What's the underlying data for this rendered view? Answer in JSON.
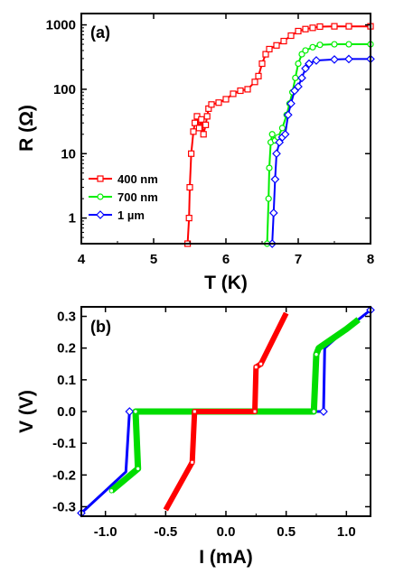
{
  "chart_data": [
    {
      "panel_label": "(a)",
      "type": "line",
      "xlabel": "T (K)",
      "ylabel": "R (Ω)",
      "xlim": [
        4,
        8
      ],
      "ylim": [
        0.4,
        1500
      ],
      "yscale": "log",
      "xticks": [
        "4",
        "5",
        "6",
        "7",
        "8"
      ],
      "yticks": [
        "1",
        "10",
        "100",
        "1000"
      ],
      "legend_position": "middle-left",
      "series": [
        {
          "name": "400 nm",
          "color": "#ff0000",
          "marker": "square",
          "points": [
            [
              5.47,
              0.4
            ],
            [
              5.49,
              1
            ],
            [
              5.5,
              3
            ],
            [
              5.52,
              10
            ],
            [
              5.55,
              22
            ],
            [
              5.57,
              30
            ],
            [
              5.6,
              38
            ],
            [
              5.63,
              25
            ],
            [
              5.66,
              34
            ],
            [
              5.69,
              20
            ],
            [
              5.72,
              28
            ],
            [
              5.74,
              38
            ],
            [
              5.76,
              50
            ],
            [
              5.8,
              58
            ],
            [
              5.9,
              62
            ],
            [
              6.0,
              70
            ],
            [
              6.1,
              85
            ],
            [
              6.2,
              95
            ],
            [
              6.3,
              100
            ],
            [
              6.4,
              130
            ],
            [
              6.45,
              160
            ],
            [
              6.5,
              250
            ],
            [
              6.55,
              350
            ],
            [
              6.6,
              420
            ],
            [
              6.7,
              480
            ],
            [
              6.8,
              560
            ],
            [
              6.9,
              680
            ],
            [
              7.0,
              800
            ],
            [
              7.1,
              860
            ],
            [
              7.2,
              900
            ],
            [
              7.3,
              940
            ],
            [
              7.5,
              950
            ],
            [
              7.7,
              950
            ],
            [
              8.0,
              950
            ]
          ]
        },
        {
          "name": "700 nm",
          "color": "#00ee00",
          "marker": "circle",
          "points": [
            [
              6.57,
              0.4
            ],
            [
              6.59,
              2
            ],
            [
              6.6,
              6
            ],
            [
              6.62,
              15
            ],
            [
              6.64,
              20
            ],
            [
              6.68,
              16
            ],
            [
              6.72,
              18
            ],
            [
              6.78,
              25
            ],
            [
              6.84,
              40
            ],
            [
              6.88,
              60
            ],
            [
              6.92,
              90
            ],
            [
              6.96,
              150
            ],
            [
              7.0,
              250
            ],
            [
              7.05,
              350
            ],
            [
              7.1,
              400
            ],
            [
              7.2,
              450
            ],
            [
              7.3,
              490
            ],
            [
              7.5,
              500
            ],
            [
              7.7,
              500
            ],
            [
              8.0,
              500
            ]
          ]
        },
        {
          "name": "1 µm",
          "color": "#0000ff",
          "marker": "diamond",
          "points": [
            [
              6.64,
              0.4
            ],
            [
              6.66,
              1.2
            ],
            [
              6.68,
              4
            ],
            [
              6.7,
              10
            ],
            [
              6.74,
              15
            ],
            [
              6.78,
              18
            ],
            [
              6.82,
              20
            ],
            [
              6.86,
              40
            ],
            [
              6.9,
              60
            ],
            [
              6.95,
              95
            ],
            [
              7.0,
              110
            ],
            [
              7.05,
              150
            ],
            [
              7.1,
              210
            ],
            [
              7.15,
              250
            ],
            [
              7.25,
              280
            ],
            [
              7.5,
              290
            ],
            [
              7.7,
              295
            ],
            [
              8.0,
              295
            ]
          ]
        }
      ]
    },
    {
      "panel_label": "(b)",
      "type": "line",
      "xlabel": "I (mA)",
      "ylabel": "V (V)",
      "xlim": [
        -1.2,
        1.2
      ],
      "ylim": [
        -0.33,
        0.33
      ],
      "xticks": [
        "-1.0",
        "-0.5",
        "0.0",
        "0.5",
        "1.0"
      ],
      "yticks": [
        "-0.3",
        "-0.2",
        "-0.1",
        "0.0",
        "0.1",
        "0.2",
        "0.3"
      ],
      "series": [
        {
          "color": "#0000ff",
          "points": [
            [
              -1.2,
              -0.32
            ],
            [
              -1.0,
              -0.25
            ],
            [
              -0.83,
              -0.19
            ],
            [
              -0.8,
              0
            ],
            [
              0.78,
              0
            ],
            [
              0.81,
              0
            ],
            [
              0.82,
              0.2
            ],
            [
              1.0,
              0.26
            ],
            [
              1.2,
              0.32
            ]
          ]
        },
        {
          "color": "#00dd00",
          "points": [
            [
              -0.95,
              -0.25
            ],
            [
              -0.73,
              -0.18
            ],
            [
              -0.75,
              0
            ],
            [
              0.73,
              0
            ],
            [
              0.75,
              0.18
            ],
            [
              0.77,
              0.2
            ],
            [
              1.0,
              0.26
            ],
            [
              1.1,
              0.29
            ]
          ]
        },
        {
          "color": "#ff0000",
          "points": [
            [
              -0.5,
              -0.31
            ],
            [
              -0.28,
              -0.16
            ],
            [
              -0.26,
              0
            ],
            [
              0.24,
              0
            ],
            [
              0.25,
              0.14
            ],
            [
              0.29,
              0.15
            ],
            [
              0.5,
              0.31
            ]
          ]
        }
      ]
    }
  ]
}
